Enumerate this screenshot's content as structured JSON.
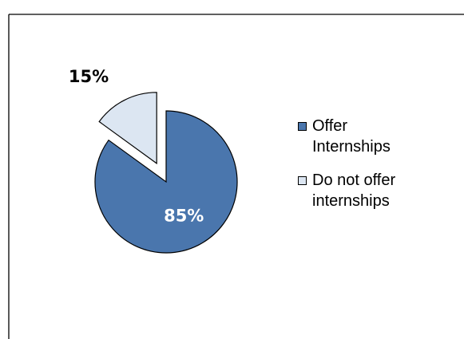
{
  "chart_data": {
    "type": "pie",
    "title": "",
    "categories": [
      "Offer\nInternships",
      "Do not offer\ninternships"
    ],
    "values": [
      85,
      15
    ],
    "data_labels": [
      "85%",
      "15%"
    ],
    "colors": [
      "#4a76ad",
      "#dce6f2"
    ],
    "label_colors": [
      "#ffffff",
      "#000000"
    ],
    "exploded_slice": "Do not offer internships",
    "legend_position": "right"
  }
}
